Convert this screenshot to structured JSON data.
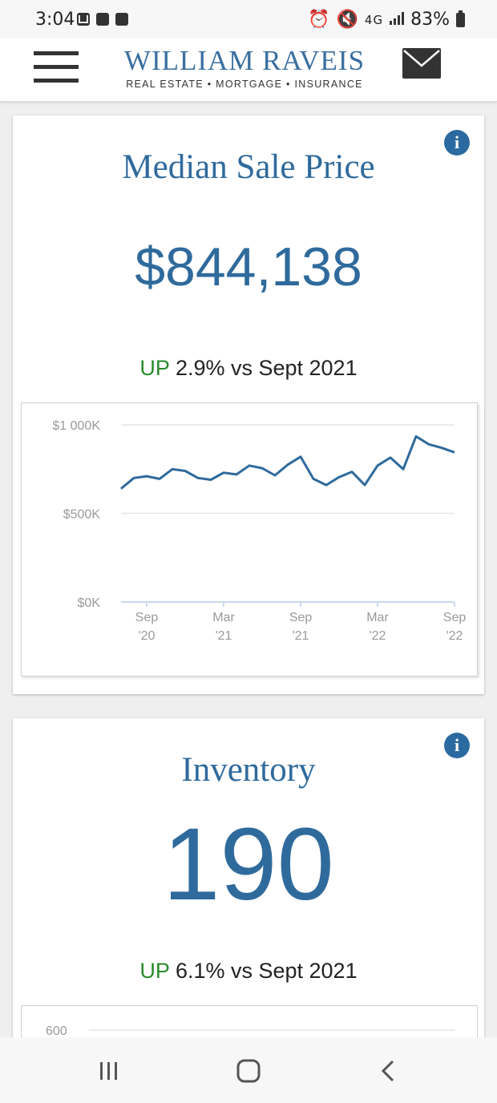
{
  "status_bar": {
    "time": "3:04",
    "network": "4G",
    "battery": "83%",
    "icons": [
      "mail-icon",
      "image-icon",
      "sync-icon",
      "alarm-icon",
      "mute-icon",
      "network-icon",
      "signal-icon",
      "battery-icon"
    ]
  },
  "header": {
    "logo_main": "WILLIAM RAVEIS",
    "logo_sub": "REAL ESTATE • MORTGAGE • INSURANCE",
    "icons": [
      "hamburger-menu-icon",
      "mail-icon"
    ]
  },
  "cards": [
    {
      "title": "Median Sale Price",
      "value": "$844,138",
      "change_direction": "UP",
      "change_text": "2.9% vs Sept 2021",
      "info_icon": "info-icon"
    },
    {
      "title": "Inventory",
      "value": "190",
      "change_direction": "UP",
      "change_text": "6.1% vs Sept 2021",
      "info_icon": "info-icon"
    }
  ],
  "chart_data": [
    {
      "type": "line",
      "title": "",
      "xlabel": "",
      "ylabel": "",
      "ylim": [
        0,
        1000000
      ],
      "y_ticks": [
        {
          "value": 1000000,
          "label": "$1 000K"
        },
        {
          "value": 500000,
          "label": "$500K"
        },
        {
          "value": 0,
          "label": "$0K"
        }
      ],
      "x_ticks": [
        {
          "index": 2,
          "label_1": "Sep",
          "label_2": "'20"
        },
        {
          "index": 8,
          "label_1": "Mar",
          "label_2": "'21"
        },
        {
          "index": 14,
          "label_1": "Sep",
          "label_2": "'21"
        },
        {
          "index": 20,
          "label_1": "Mar",
          "label_2": "'22"
        },
        {
          "index": 26,
          "label_1": "Sep",
          "label_2": "'22"
        }
      ],
      "series": [
        {
          "values": [
            640000,
            700000,
            710000,
            695000,
            750000,
            740000,
            700000,
            690000,
            730000,
            720000,
            770000,
            755000,
            715000,
            775000,
            820000,
            695000,
            660000,
            705000,
            735000,
            660000,
            770000,
            815000,
            750000,
            935000,
            890000,
            870000,
            845000
          ]
        }
      ],
      "grid": true,
      "legend": "none"
    },
    {
      "type": "line",
      "partial": true,
      "y_ticks": [
        {
          "value": 600,
          "label": "600"
        }
      ]
    }
  ],
  "nav_bar": {
    "icons": [
      "recent-apps-icon",
      "home-icon",
      "back-icon"
    ]
  },
  "colors": {
    "accent": "#2f6a9c",
    "up": "#2a8a2a",
    "text": "#222222"
  }
}
